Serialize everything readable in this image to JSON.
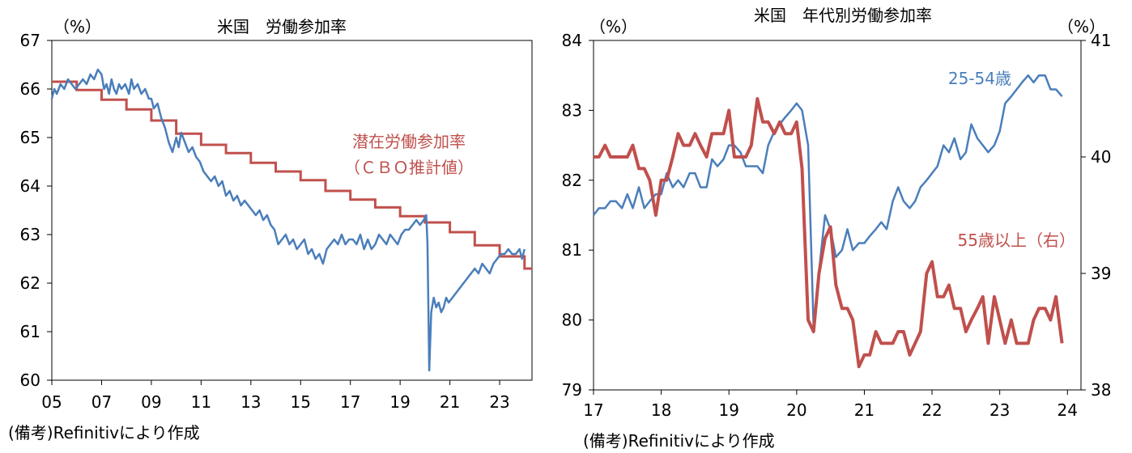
{
  "chart_data": [
    {
      "type": "line",
      "title": "米国　労働参加率",
      "ylabel": "（%）",
      "ylim": [
        60,
        67
      ],
      "yticks": [
        "60",
        "61",
        "62",
        "63",
        "64",
        "65",
        "66",
        "67"
      ],
      "xlim": [
        2005,
        2024.3
      ],
      "xtick_labels": [
        "05",
        "07",
        "09",
        "11",
        "13",
        "15",
        "17",
        "19",
        "21",
        "23"
      ],
      "source": "(備考)Refinitivにより作成",
      "series": [
        {
          "name": "労働参加率",
          "color": "#4a7ebb",
          "x": [
            2005.0,
            2005.1,
            2005.2,
            2005.35,
            2005.5,
            2005.65,
            2005.8,
            2005.95,
            2006.1,
            2006.25,
            2006.4,
            2006.55,
            2006.7,
            2006.85,
            2007.0,
            2007.1,
            2007.2,
            2007.3,
            2007.4,
            2007.5,
            2007.6,
            2007.7,
            2007.8,
            2007.95,
            2008.1,
            2008.2,
            2008.3,
            2008.45,
            2008.6,
            2008.75,
            2008.9,
            2009.0,
            2009.1,
            2009.25,
            2009.4,
            2009.55,
            2009.7,
            2009.85,
            2010.0,
            2010.1,
            2010.2,
            2010.35,
            2010.5,
            2010.65,
            2010.8,
            2010.95,
            2011.1,
            2011.25,
            2011.4,
            2011.55,
            2011.7,
            2011.85,
            2012.0,
            2012.15,
            2012.3,
            2012.45,
            2012.6,
            2012.75,
            2012.9,
            2013.05,
            2013.2,
            2013.35,
            2013.5,
            2013.65,
            2013.8,
            2013.95,
            2014.1,
            2014.25,
            2014.4,
            2014.55,
            2014.7,
            2014.85,
            2015.0,
            2015.15,
            2015.3,
            2015.45,
            2015.6,
            2015.75,
            2015.9,
            2016.05,
            2016.2,
            2016.35,
            2016.5,
            2016.65,
            2016.8,
            2016.95,
            2017.1,
            2017.25,
            2017.4,
            2017.55,
            2017.7,
            2017.85,
            2018.0,
            2018.15,
            2018.3,
            2018.45,
            2018.6,
            2018.75,
            2018.9,
            2019.05,
            2019.2,
            2019.35,
            2019.5,
            2019.65,
            2019.8,
            2019.95,
            2020.05,
            2020.1,
            2020.17,
            2020.25,
            2020.35,
            2020.45,
            2020.55,
            2020.65,
            2020.75,
            2020.85,
            2020.95,
            2021.1,
            2021.25,
            2021.4,
            2021.55,
            2021.7,
            2021.85,
            2022.0,
            2022.15,
            2022.3,
            2022.45,
            2022.6,
            2022.75,
            2022.9,
            2023.05,
            2023.2,
            2023.35,
            2023.5,
            2023.65,
            2023.8,
            2023.9,
            2024.0
          ],
          "values": [
            65.8,
            66.0,
            65.9,
            66.1,
            66.0,
            66.2,
            66.1,
            66.0,
            66.1,
            66.2,
            66.1,
            66.3,
            66.2,
            66.4,
            66.3,
            66.0,
            66.1,
            65.9,
            66.2,
            66.0,
            65.9,
            66.1,
            66.0,
            66.1,
            65.9,
            66.2,
            66.0,
            66.1,
            65.9,
            66.0,
            65.8,
            65.8,
            65.6,
            65.7,
            65.4,
            65.2,
            64.9,
            64.7,
            65.0,
            64.8,
            65.1,
            64.9,
            64.7,
            64.8,
            64.6,
            64.5,
            64.3,
            64.2,
            64.1,
            64.2,
            64.0,
            64.1,
            63.8,
            63.9,
            63.7,
            63.8,
            63.6,
            63.7,
            63.6,
            63.5,
            63.4,
            63.5,
            63.3,
            63.4,
            63.2,
            63.1,
            62.8,
            62.9,
            63.0,
            62.8,
            62.9,
            62.7,
            62.8,
            62.9,
            62.6,
            62.7,
            62.5,
            62.6,
            62.4,
            62.7,
            62.8,
            62.9,
            62.8,
            63.0,
            62.8,
            62.9,
            62.9,
            62.8,
            63.0,
            62.7,
            62.9,
            62.7,
            62.8,
            63.0,
            62.9,
            62.8,
            63.0,
            62.9,
            62.8,
            63.0,
            63.1,
            63.1,
            63.2,
            63.3,
            63.2,
            63.3,
            63.4,
            62.8,
            60.2,
            61.4,
            61.7,
            61.5,
            61.6,
            61.4,
            61.5,
            61.7,
            61.6,
            61.7,
            61.8,
            61.9,
            62.0,
            62.1,
            62.2,
            62.3,
            62.2,
            62.4,
            62.3,
            62.2,
            62.4,
            62.5,
            62.6,
            62.6,
            62.7,
            62.6,
            62.6,
            62.7,
            62.5,
            62.7
          ]
        },
        {
          "name": "潜在労働参加率（ＣＢＯ推計値）",
          "color": "#c0504d",
          "step": true,
          "x": [
            2005.0,
            2006.0,
            2007.0,
            2008.0,
            2009.0,
            2010.0,
            2011.0,
            2012.0,
            2013.0,
            2014.0,
            2015.0,
            2016.0,
            2017.0,
            2018.0,
            2019.0,
            2020.0,
            2021.0,
            2022.0,
            2023.0,
            2024.0,
            2024.3
          ],
          "values": [
            66.15,
            65.98,
            65.78,
            65.58,
            65.35,
            65.08,
            64.85,
            64.68,
            64.48,
            64.3,
            64.12,
            63.9,
            63.72,
            63.56,
            63.38,
            63.25,
            63.05,
            62.78,
            62.55,
            62.3,
            62.3
          ]
        }
      ],
      "annotations": {
        "line1": "潜在労働参加率",
        "line2": "（ＣＢＯ推計値）"
      }
    },
    {
      "type": "line",
      "title": "米国　年代別労働参加率",
      "ylabel_left": "（%）",
      "ylabel_right": "（%）",
      "ylim_left": [
        79,
        84
      ],
      "ylim_right": [
        38,
        41
      ],
      "yticks_left": [
        "79",
        "80",
        "81",
        "82",
        "83",
        "84"
      ],
      "yticks_right": [
        "38",
        "39",
        "40",
        "41"
      ],
      "xlim": [
        2017,
        2024.2
      ],
      "xtick_labels": [
        "17",
        "18",
        "19",
        "20",
        "21",
        "22",
        "23",
        "24"
      ],
      "source": "(備考)Refinitivにより作成",
      "series": [
        {
          "name": "25-54歳",
          "axis": "left",
          "color": "#4a7ebb",
          "x": [
            2017.0,
            2017.08,
            2017.17,
            2017.25,
            2017.33,
            2017.42,
            2017.5,
            2017.58,
            2017.67,
            2017.75,
            2017.83,
            2017.92,
            2018.0,
            2018.08,
            2018.17,
            2018.25,
            2018.33,
            2018.42,
            2018.5,
            2018.58,
            2018.67,
            2018.75,
            2018.83,
            2018.92,
            2019.0,
            2019.08,
            2019.17,
            2019.25,
            2019.33,
            2019.42,
            2019.5,
            2019.58,
            2019.67,
            2019.75,
            2019.83,
            2019.92,
            2020.0,
            2020.08,
            2020.17,
            2020.25,
            2020.33,
            2020.42,
            2020.5,
            2020.58,
            2020.67,
            2020.75,
            2020.83,
            2020.92,
            2021.0,
            2021.08,
            2021.17,
            2021.25,
            2021.33,
            2021.42,
            2021.5,
            2021.58,
            2021.67,
            2021.75,
            2021.83,
            2021.92,
            2022.0,
            2022.08,
            2022.17,
            2022.25,
            2022.33,
            2022.42,
            2022.5,
            2022.58,
            2022.67,
            2022.75,
            2022.83,
            2022.92,
            2023.0,
            2023.08,
            2023.17,
            2023.25,
            2023.33,
            2023.42,
            2023.5,
            2023.58,
            2023.67,
            2023.75,
            2023.83,
            2023.92
          ],
          "values": [
            81.5,
            81.6,
            81.6,
            81.7,
            81.7,
            81.6,
            81.8,
            81.6,
            81.9,
            81.6,
            81.7,
            81.8,
            81.8,
            82.1,
            81.9,
            82.0,
            81.9,
            82.1,
            82.1,
            81.9,
            81.9,
            82.3,
            82.2,
            82.3,
            82.5,
            82.5,
            82.4,
            82.2,
            82.2,
            82.2,
            82.1,
            82.5,
            82.7,
            82.8,
            82.9,
            83.0,
            83.1,
            83.0,
            82.5,
            79.9,
            80.7,
            81.5,
            81.3,
            80.9,
            81.0,
            81.3,
            81.0,
            81.1,
            81.1,
            81.2,
            81.3,
            81.4,
            81.3,
            81.7,
            81.9,
            81.7,
            81.6,
            81.7,
            81.9,
            82.0,
            82.1,
            82.2,
            82.5,
            82.4,
            82.6,
            82.3,
            82.4,
            82.8,
            82.6,
            82.5,
            82.4,
            82.5,
            82.7,
            83.1,
            83.2,
            83.3,
            83.4,
            83.5,
            83.4,
            83.5,
            83.5,
            83.3,
            83.3,
            83.2
          ]
        },
        {
          "name": "55歳以上（右）",
          "axis": "right",
          "color": "#c0504d",
          "x": [
            2017.0,
            2017.08,
            2017.17,
            2017.25,
            2017.33,
            2017.42,
            2017.5,
            2017.58,
            2017.67,
            2017.75,
            2017.83,
            2017.92,
            2018.0,
            2018.08,
            2018.17,
            2018.25,
            2018.33,
            2018.42,
            2018.5,
            2018.58,
            2018.67,
            2018.75,
            2018.83,
            2018.92,
            2019.0,
            2019.08,
            2019.17,
            2019.25,
            2019.33,
            2019.42,
            2019.5,
            2019.58,
            2019.67,
            2019.75,
            2019.83,
            2019.92,
            2020.0,
            2020.08,
            2020.17,
            2020.25,
            2020.33,
            2020.42,
            2020.5,
            2020.58,
            2020.67,
            2020.75,
            2020.83,
            2020.92,
            2021.0,
            2021.08,
            2021.17,
            2021.25,
            2021.33,
            2021.42,
            2021.5,
            2021.58,
            2021.67,
            2021.75,
            2021.83,
            2021.92,
            2022.0,
            2022.08,
            2022.17,
            2022.25,
            2022.33,
            2022.42,
            2022.5,
            2022.58,
            2022.67,
            2022.75,
            2022.83,
            2022.92,
            2023.0,
            2023.08,
            2023.17,
            2023.25,
            2023.33,
            2023.42,
            2023.5,
            2023.58,
            2023.67,
            2023.75,
            2023.83,
            2023.92
          ],
          "values": [
            40.0,
            40.0,
            40.1,
            40.0,
            40.0,
            40.0,
            40.0,
            40.1,
            39.9,
            39.9,
            39.8,
            39.5,
            39.8,
            39.8,
            40.0,
            40.2,
            40.1,
            40.1,
            40.2,
            40.1,
            40.0,
            40.2,
            40.2,
            40.2,
            40.4,
            40.0,
            40.0,
            40.0,
            40.1,
            40.5,
            40.3,
            40.3,
            40.2,
            40.3,
            40.2,
            40.2,
            40.3,
            39.9,
            38.6,
            38.5,
            39.0,
            39.3,
            39.4,
            38.9,
            38.7,
            38.7,
            38.6,
            38.2,
            38.3,
            38.3,
            38.5,
            38.4,
            38.4,
            38.4,
            38.5,
            38.5,
            38.3,
            38.4,
            38.5,
            39.0,
            39.1,
            38.8,
            38.8,
            38.9,
            38.7,
            38.7,
            38.5,
            38.6,
            38.7,
            38.8,
            38.4,
            38.8,
            38.6,
            38.4,
            38.6,
            38.4,
            38.4,
            38.4,
            38.6,
            38.7,
            38.7,
            38.6,
            38.8,
            38.4
          ]
        }
      ],
      "annotations": {
        "blue": "25-54歳",
        "red": "55歳以上（右）"
      }
    }
  ]
}
